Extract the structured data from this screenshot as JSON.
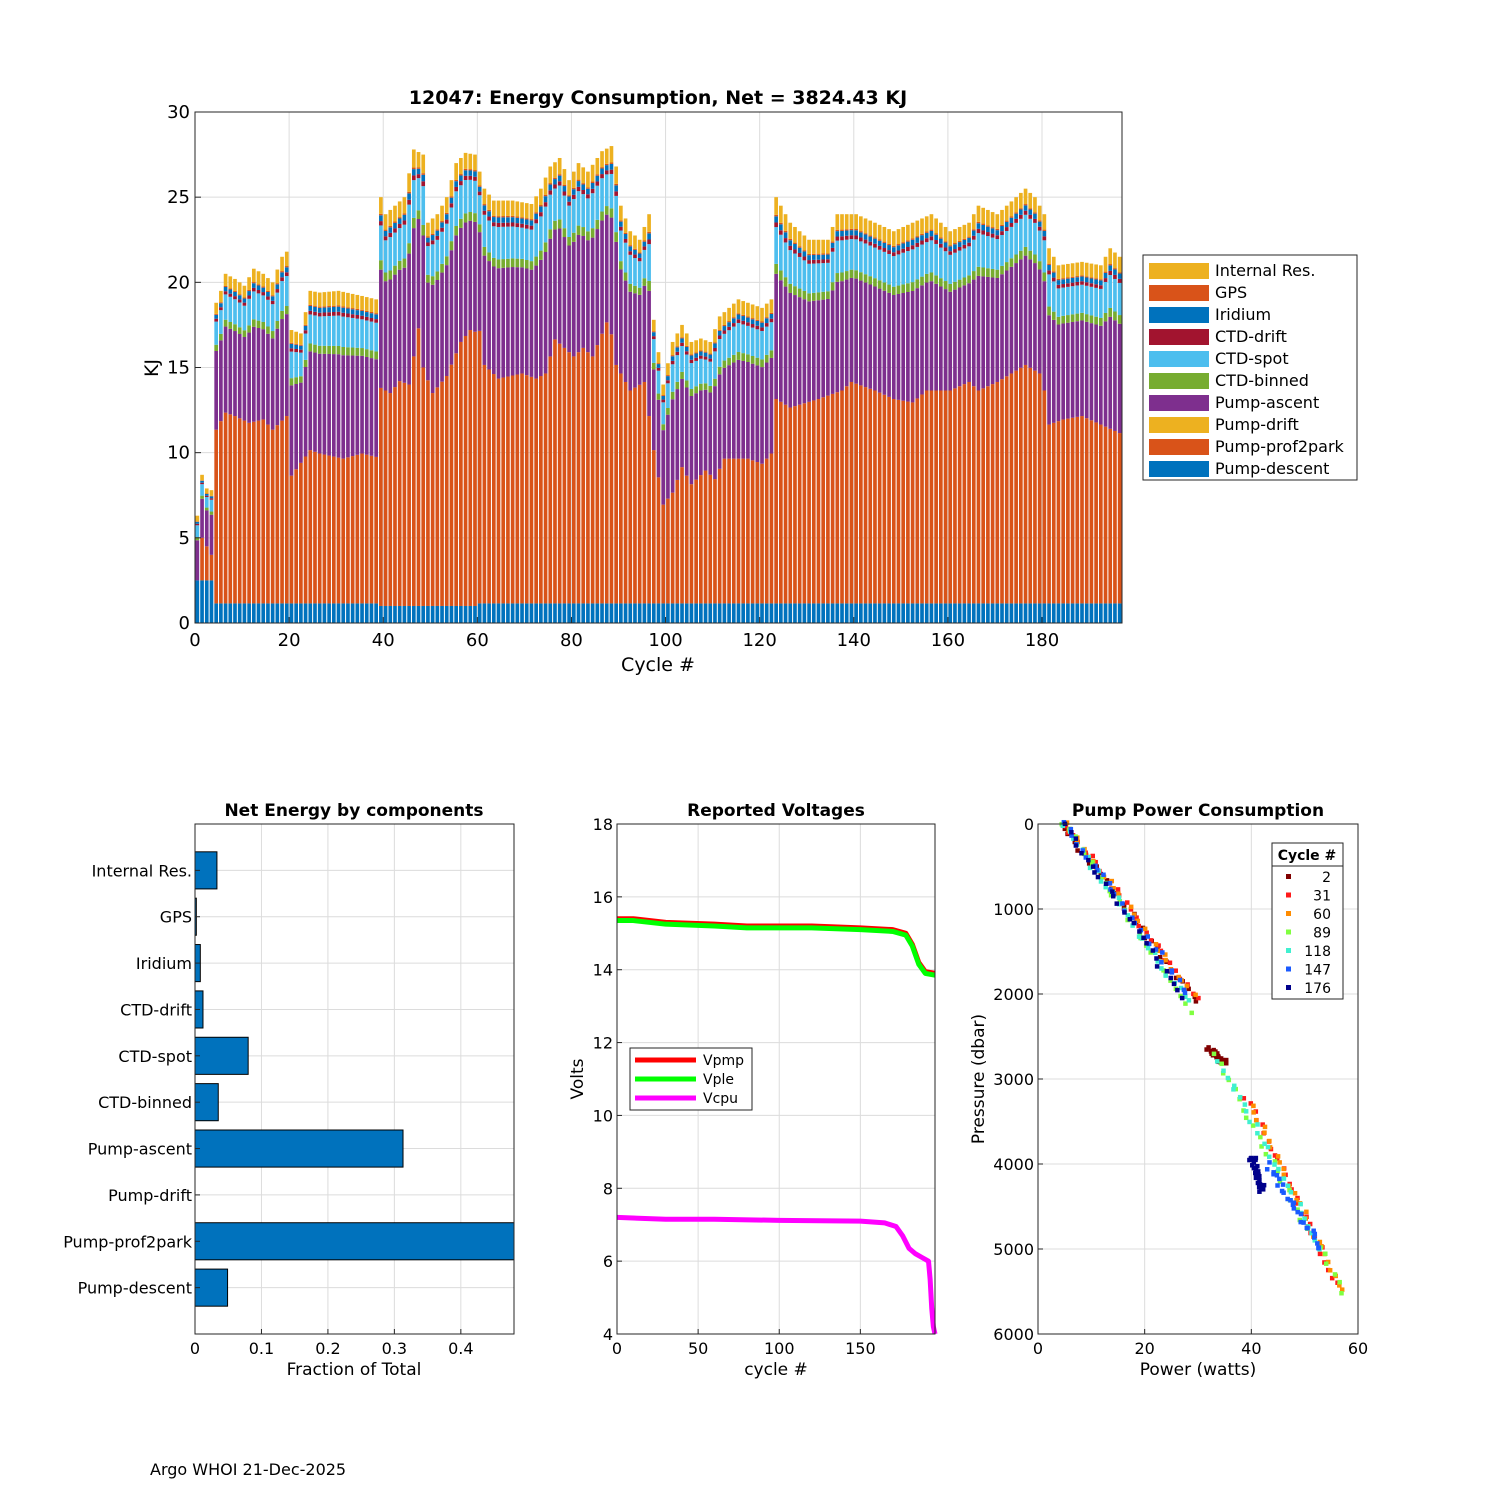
{
  "footer": "Argo WHOI 21-Dec-2025",
  "chart_data": [
    {
      "type": "bar",
      "stacked": true,
      "title": "12047: Energy Consumption,  Net = 3824.43 KJ",
      "xlabel": "Cycle #",
      "ylabel": "KJ",
      "xlim": [
        0,
        197
      ],
      "ylim": [
        0,
        30
      ],
      "xticks": [
        0,
        20,
        40,
        60,
        80,
        100,
        120,
        140,
        160,
        180
      ],
      "yticks": [
        0,
        5,
        10,
        15,
        20,
        25,
        30
      ],
      "grid": true,
      "legend_position": "outside-right",
      "components": [
        {
          "name": "Pump-descent",
          "color": "#0072BD"
        },
        {
          "name": "Pump-prof2park",
          "color": "#D95319"
        },
        {
          "name": "Pump-drift",
          "color": "#EDB120"
        },
        {
          "name": "Pump-ascent",
          "color": "#7E2F8E"
        },
        {
          "name": "CTD-binned",
          "color": "#77AC30"
        },
        {
          "name": "CTD-spot",
          "color": "#4DBEEE"
        },
        {
          "name": "CTD-drift",
          "color": "#A2142F"
        },
        {
          "name": "Iridium",
          "color": "#0072BD"
        },
        {
          "name": "GPS",
          "color": "#D95319"
        },
        {
          "name": "Internal Res.",
          "color": "#EDB120"
        }
      ],
      "legend_order": [
        "Internal Res.",
        "GPS",
        "Iridium",
        "CTD-drift",
        "CTD-spot",
        "CTD-binned",
        "Pump-ascent",
        "Pump-drift",
        "Pump-prof2park",
        "Pump-descent"
      ],
      "total_profile": [
        [
          0,
          6.3
        ],
        [
          1,
          8.7
        ],
        [
          2,
          7.9
        ],
        [
          3,
          7.8
        ],
        [
          4,
          18.8
        ],
        [
          5,
          19.5
        ],
        [
          6,
          20.5
        ],
        [
          8,
          20.2
        ],
        [
          10,
          19.8
        ],
        [
          12,
          20.8
        ],
        [
          14,
          20.5
        ],
        [
          16,
          20.0
        ],
        [
          18,
          21.5
        ],
        [
          19,
          21.8
        ],
        [
          20,
          17.2
        ],
        [
          22,
          17.0
        ],
        [
          24,
          19.5
        ],
        [
          26,
          19.4
        ],
        [
          30,
          19.5
        ],
        [
          35,
          19.2
        ],
        [
          38,
          19.0
        ],
        [
          39,
          25.0
        ],
        [
          40,
          24.0
        ],
        [
          42,
          24.5
        ],
        [
          44,
          25.0
        ],
        [
          46,
          27.8
        ],
        [
          48,
          27.5
        ],
        [
          49,
          23.5
        ],
        [
          51,
          24.0
        ],
        [
          53,
          25.0
        ],
        [
          55,
          27.0
        ],
        [
          57,
          27.6
        ],
        [
          59,
          27.5
        ],
        [
          61,
          25.5
        ],
        [
          63,
          24.8
        ],
        [
          67,
          24.8
        ],
        [
          71,
          24.6
        ],
        [
          73,
          25.5
        ],
        [
          75,
          26.8
        ],
        [
          77,
          27.3
        ],
        [
          79,
          26.0
        ],
        [
          81,
          27.0
        ],
        [
          83,
          26.5
        ],
        [
          86,
          27.7
        ],
        [
          88,
          28.0
        ],
        [
          89,
          26.8
        ],
        [
          90,
          24.5
        ],
        [
          92,
          23.0
        ],
        [
          94,
          22.5
        ],
        [
          96,
          24.0
        ],
        [
          97,
          17.8
        ],
        [
          99,
          14.0
        ],
        [
          101,
          16.5
        ],
        [
          103,
          17.5
        ],
        [
          105,
          16.5
        ],
        [
          107,
          16.7
        ],
        [
          109,
          16.5
        ],
        [
          111,
          18.0
        ],
        [
          113,
          18.5
        ],
        [
          115,
          19.0
        ],
        [
          117,
          18.8
        ],
        [
          120,
          18.5
        ],
        [
          122,
          19.0
        ],
        [
          123,
          25.0
        ],
        [
          126,
          23.5
        ],
        [
          130,
          22.5
        ],
        [
          134,
          22.5
        ],
        [
          136,
          24.0
        ],
        [
          140,
          24.0
        ],
        [
          144,
          23.5
        ],
        [
          148,
          23.0
        ],
        [
          152,
          23.5
        ],
        [
          156,
          24.0
        ],
        [
          160,
          23.0
        ],
        [
          164,
          23.5
        ],
        [
          166,
          24.5
        ],
        [
          170,
          24.0
        ],
        [
          174,
          25.0
        ],
        [
          176,
          25.5
        ],
        [
          178,
          25.0
        ],
        [
          180,
          24.0
        ],
        [
          181,
          22.0
        ],
        [
          183,
          21.0
        ],
        [
          188,
          21.2
        ],
        [
          192,
          21.0
        ],
        [
          194,
          22.0
        ],
        [
          196,
          21.5
        ]
      ],
      "prof2park_profile": [
        [
          0,
          0
        ],
        [
          1,
          2.5
        ],
        [
          2,
          2.0
        ],
        [
          3,
          1.5
        ],
        [
          4,
          10.2
        ],
        [
          6,
          11.2
        ],
        [
          8,
          11.0
        ],
        [
          11,
          10.6
        ],
        [
          14,
          10.8
        ],
        [
          16,
          10.2
        ],
        [
          19,
          11.0
        ],
        [
          20,
          7.5
        ],
        [
          24,
          9.0
        ],
        [
          26,
          8.8
        ],
        [
          31,
          8.5
        ],
        [
          35,
          8.8
        ],
        [
          38,
          8.6
        ],
        [
          39,
          12.8
        ],
        [
          41,
          12.5
        ],
        [
          43,
          13.2
        ],
        [
          45,
          13.0
        ],
        [
          47,
          16.3
        ],
        [
          48,
          14.0
        ],
        [
          50,
          12.5
        ],
        [
          53,
          13.5
        ],
        [
          56,
          15.5
        ],
        [
          58,
          16.2
        ],
        [
          60,
          16.0
        ],
        [
          61,
          14.0
        ],
        [
          64,
          13.2
        ],
        [
          69,
          13.5
        ],
        [
          72,
          13.2
        ],
        [
          74,
          13.5
        ],
        [
          76,
          15.5
        ],
        [
          78,
          15.0
        ],
        [
          80,
          14.5
        ],
        [
          82,
          15.0
        ],
        [
          84,
          14.5
        ],
        [
          87,
          16.5
        ],
        [
          88,
          15.8
        ],
        [
          89,
          14.0
        ],
        [
          90,
          13.5
        ],
        [
          92,
          12.5
        ],
        [
          95,
          13.0
        ],
        [
          97,
          9.0
        ],
        [
          99,
          5.8
        ],
        [
          101,
          6.5
        ],
        [
          103,
          8.0
        ],
        [
          105,
          7.0
        ],
        [
          108,
          7.8
        ],
        [
          110,
          7.3
        ],
        [
          112,
          8.5
        ],
        [
          117,
          8.5
        ],
        [
          120,
          8.2
        ],
        [
          122,
          8.8
        ],
        [
          123,
          12.0
        ],
        [
          126,
          11.5
        ],
        [
          132,
          12.0
        ],
        [
          137,
          12.5
        ],
        [
          139,
          13.0
        ],
        [
          144,
          12.5
        ],
        [
          148,
          12.0
        ],
        [
          152,
          11.8
        ],
        [
          155,
          12.5
        ],
        [
          160,
          12.5
        ],
        [
          164,
          13.0
        ],
        [
          166,
          12.5
        ],
        [
          170,
          13.0
        ],
        [
          173,
          13.5
        ],
        [
          176,
          14.0
        ],
        [
          179,
          13.5
        ],
        [
          180,
          12.5
        ],
        [
          181,
          10.5
        ],
        [
          184,
          10.8
        ],
        [
          188,
          11.0
        ],
        [
          192,
          10.5
        ],
        [
          196,
          10.0
        ]
      ],
      "notes": "Stacked bar chart, one bar per cycle (0-196). Values estimated from the plot; pump-descent ~1 KJ, upper small components (CTD, Iridium, GPS, Internal Res.) fill the remainder."
    },
    {
      "type": "bar",
      "orientation": "horizontal",
      "title": "Net Energy by components",
      "xlabel": "Fraction of Total",
      "ylabel": "",
      "xlim": [
        0,
        0.48
      ],
      "xticks": [
        0,
        0.1,
        0.2,
        0.3,
        0.4
      ],
      "xtick_labels": [
        "0",
        "0.1",
        "0.2",
        "0.3",
        "0.4"
      ],
      "grid": true,
      "categories": [
        "Internal Res.",
        "GPS",
        "Iridium",
        "CTD-drift",
        "CTD-spot",
        "CTD-binned",
        "Pump-ascent",
        "Pump-drift",
        "Pump-prof2park",
        "Pump-descent"
      ],
      "values": [
        0.033,
        0.002,
        0.008,
        0.012,
        0.08,
        0.035,
        0.313,
        0.0,
        0.48,
        0.049
      ],
      "bar_color": "#0072BD"
    },
    {
      "type": "line",
      "title": "Reported Voltages",
      "xlabel": "cycle #",
      "ylabel": "Volts",
      "xlim": [
        0,
        196
      ],
      "ylim": [
        4,
        18
      ],
      "xticks": [
        0,
        50,
        100,
        150
      ],
      "yticks": [
        4,
        6,
        8,
        10,
        12,
        14,
        16,
        18
      ],
      "grid": true,
      "legend_position": "center-left",
      "series": [
        {
          "name": "Vpmp",
          "color": "#FF0000",
          "points": [
            [
              0,
              15.4
            ],
            [
              10,
              15.4
            ],
            [
              30,
              15.3
            ],
            [
              60,
              15.25
            ],
            [
              80,
              15.2
            ],
            [
              100,
              15.2
            ],
            [
              120,
              15.2
            ],
            [
              150,
              15.15
            ],
            [
              170,
              15.1
            ],
            [
              178,
              15.0
            ],
            [
              182,
              14.7
            ],
            [
              186,
              14.2
            ],
            [
              190,
              13.95
            ],
            [
              196,
              13.9
            ]
          ]
        },
        {
          "name": "Vple",
          "color": "#00FF00",
          "points": [
            [
              0,
              15.35
            ],
            [
              10,
              15.35
            ],
            [
              30,
              15.25
            ],
            [
              60,
              15.2
            ],
            [
              80,
              15.15
            ],
            [
              100,
              15.15
            ],
            [
              120,
              15.15
            ],
            [
              150,
              15.1
            ],
            [
              170,
              15.05
            ],
            [
              178,
              14.95
            ],
            [
              182,
              14.65
            ],
            [
              186,
              14.15
            ],
            [
              190,
              13.9
            ],
            [
              196,
              13.85
            ]
          ]
        },
        {
          "name": "Vcpu",
          "color": "#FF00FF",
          "points": [
            [
              0,
              7.2
            ],
            [
              30,
              7.15
            ],
            [
              60,
              7.15
            ],
            [
              100,
              7.12
            ],
            [
              150,
              7.1
            ],
            [
              165,
              7.05
            ],
            [
              172,
              6.95
            ],
            [
              176,
              6.7
            ],
            [
              180,
              6.35
            ],
            [
              184,
              6.2
            ],
            [
              188,
              6.1
            ],
            [
              192,
              6.0
            ],
            [
              193,
              5.5
            ],
            [
              194,
              4.7
            ],
            [
              195,
              4.2
            ],
            [
              196,
              4.0
            ]
          ]
        }
      ]
    },
    {
      "type": "scatter",
      "title": "Pump Power Consumption",
      "xlabel": "Power (watts)",
      "ylabel": "Pressure (dbar)",
      "xlim": [
        0,
        60
      ],
      "ylim": [
        0,
        6000
      ],
      "y_reversed": true,
      "xticks": [
        0,
        20,
        40,
        60
      ],
      "yticks": [
        0,
        1000,
        2000,
        3000,
        4000,
        5000,
        6000
      ],
      "grid": true,
      "legend_title": "Cycle #",
      "legend_position": "top-right",
      "series": [
        {
          "name": "2",
          "color": "#800000",
          "segments": [
            [
              [
                5,
                50
              ],
              [
                30,
                2100
              ]
            ],
            [
              [
                32,
                2650
              ],
              [
                35,
                2800
              ]
            ]
          ]
        },
        {
          "name": "31",
          "color": "#FF1A1A",
          "segments": [
            [
              [
                5,
                0
              ],
              [
                30,
                2050
              ]
            ],
            [
              [
                39,
                3200
              ],
              [
                56,
                5400
              ]
            ]
          ]
        },
        {
          "name": "60",
          "color": "#FF8C00",
          "segments": [
            [
              [
                5,
                0
              ],
              [
                29,
                2000
              ]
            ],
            [
              [
                40,
                3300
              ],
              [
                57,
                5500
              ]
            ]
          ]
        },
        {
          "name": "89",
          "color": "#80FF40",
          "segments": [
            [
              [
                5,
                0
              ],
              [
                29,
                2200
              ]
            ],
            [
              [
                33,
                2700
              ],
              [
                57,
                5500
              ]
            ]
          ]
        },
        {
          "name": "118",
          "color": "#40F0D0",
          "segments": [
            [
              [
                5,
                0
              ],
              [
                28,
                2100
              ]
            ],
            [
              [
                34,
                2800
              ],
              [
                53,
                5000
              ]
            ]
          ]
        },
        {
          "name": "147",
          "color": "#1A5AFF",
          "segments": [
            [
              [
                5,
                0
              ],
              [
                28,
                2000
              ]
            ],
            [
              [
                43,
                4000
              ],
              [
                53,
                5000
              ]
            ]
          ]
        },
        {
          "name": "176",
          "color": "#00008B",
          "segments": [
            [
              [
                5,
                0
              ],
              [
                27,
                2050
              ]
            ],
            [
              [
                40,
                3900
              ],
              [
                42,
                4300
              ]
            ]
          ]
        }
      ]
    }
  ]
}
